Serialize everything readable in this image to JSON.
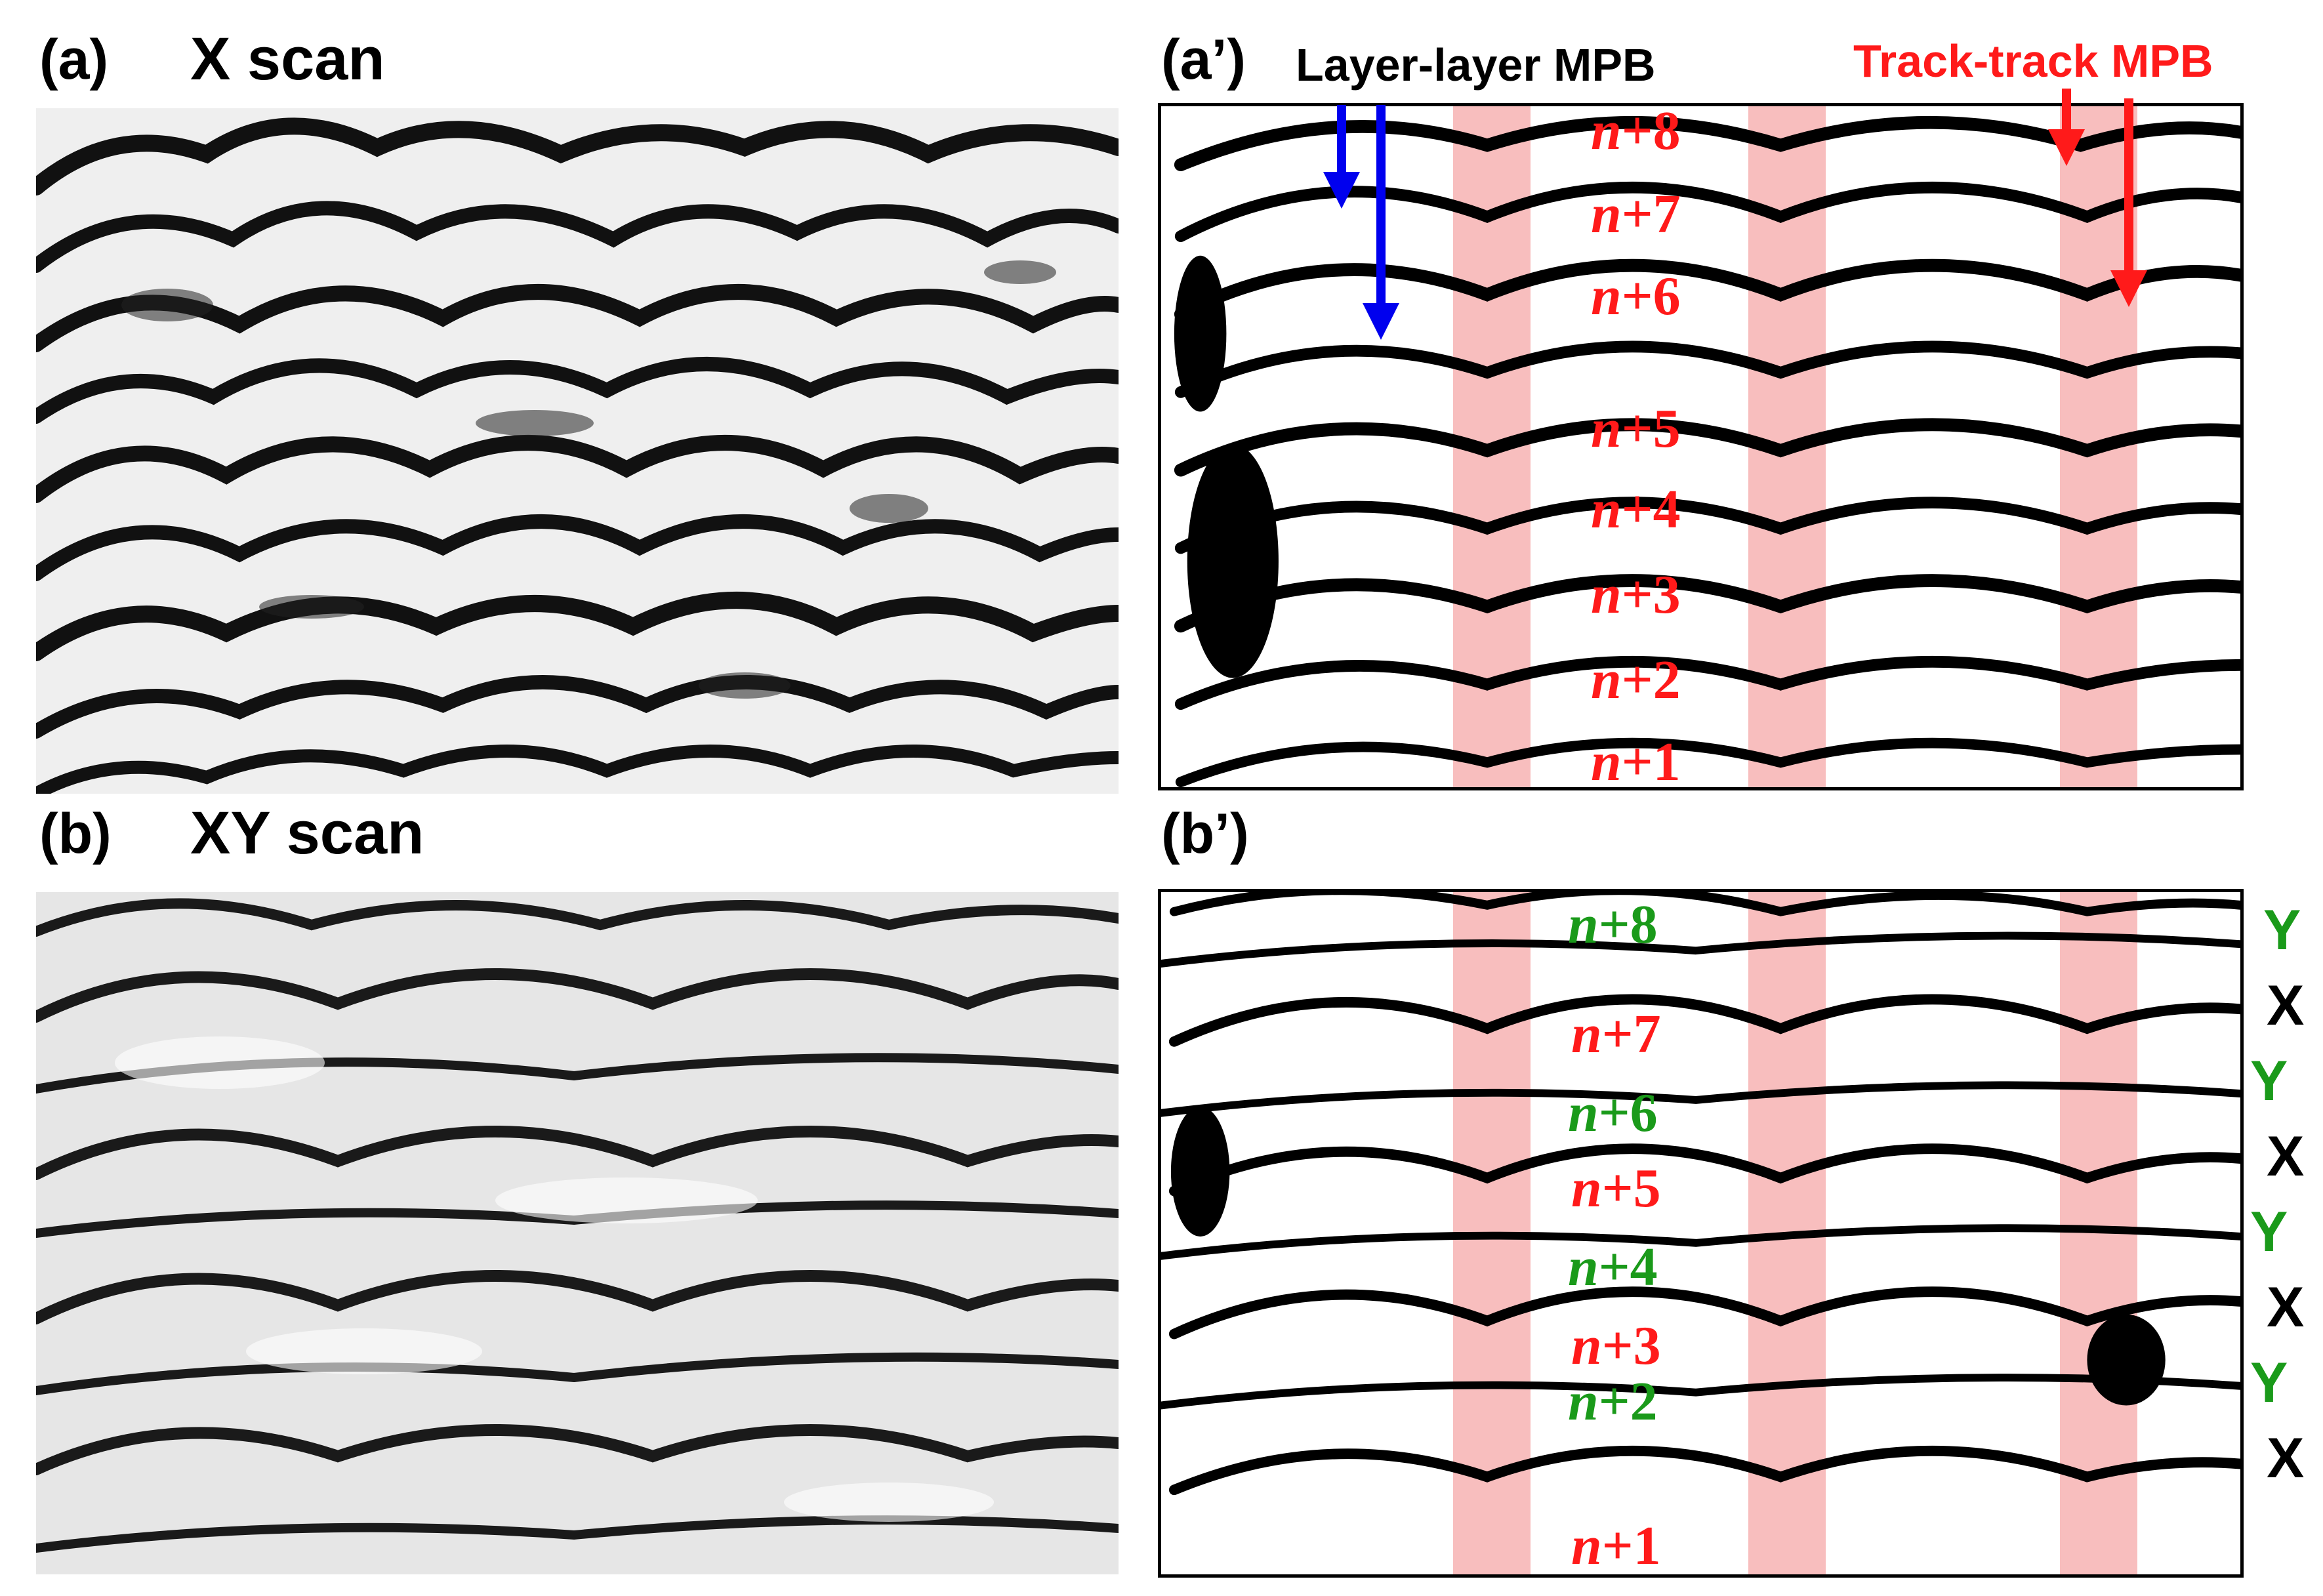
{
  "panels": {
    "a": {
      "label": "(a)",
      "title": "X scan"
    },
    "ap": {
      "label": "(a’)",
      "layer_annotation": "Layer-layer  MPB",
      "track_annotation": "Track-track MPB"
    },
    "b": {
      "label": "(b)",
      "title": "XY scan"
    },
    "bp": {
      "label": "(b’)"
    }
  },
  "layers_a": [
    {
      "n": "n",
      "suffix": "+8"
    },
    {
      "n": "n",
      "suffix": "+7"
    },
    {
      "n": "n",
      "suffix": "+6"
    },
    {
      "n": "n",
      "suffix": "+5"
    },
    {
      "n": "n",
      "suffix": "+4"
    },
    {
      "n": "n",
      "suffix": "+3"
    },
    {
      "n": "n",
      "suffix": "+2"
    },
    {
      "n": "n",
      "suffix": "+1"
    }
  ],
  "layers_b": [
    {
      "n": "n",
      "suffix": "+8"
    },
    {
      "n": "n",
      "suffix": "+7"
    },
    {
      "n": "n",
      "suffix": "+6"
    },
    {
      "n": "n",
      "suffix": "+5"
    },
    {
      "n": "n",
      "suffix": "+4"
    },
    {
      "n": "n",
      "suffix": "+3"
    },
    {
      "n": "n",
      "suffix": "+2"
    },
    {
      "n": "n",
      "suffix": "+1"
    }
  ],
  "scan_directions": [
    "Y",
    "X",
    "Y",
    "X",
    "Y",
    "X",
    "Y",
    "X"
  ],
  "colors": {
    "red": "#ff1a1a",
    "green": "#1a9a1a",
    "blue": "#0000ee",
    "band": "#f06e6e"
  }
}
